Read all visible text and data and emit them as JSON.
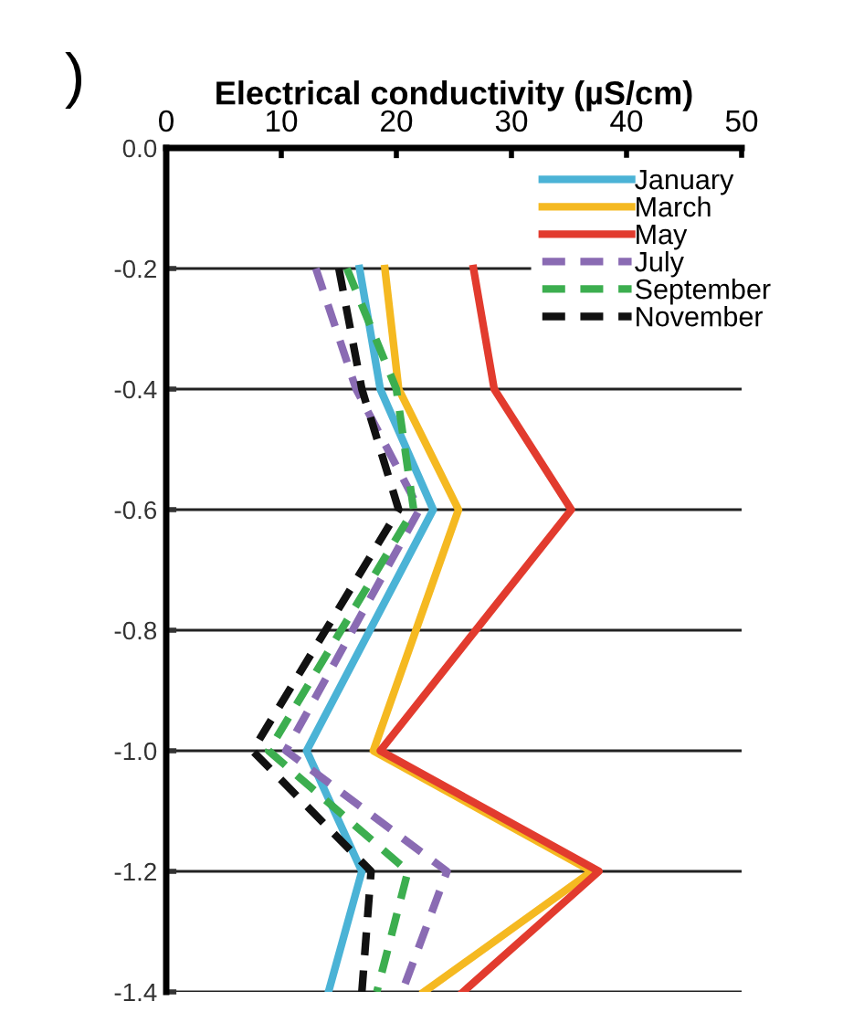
{
  "chart_data": {
    "type": "line",
    "orientation": "horizontal",
    "xlabel": "Electrical conductivity (µS/cm)",
    "x": [
      -0.2,
      -0.4,
      -0.6,
      -1.0,
      -1.2,
      -1.4
    ],
    "series": [
      {
        "name": "January",
        "color": "#4bb3d6",
        "line_style": "solid",
        "values": [
          16.8,
          18.6,
          23.2,
          12.2,
          17,
          14.1
        ]
      },
      {
        "name": "March",
        "color": "#f5b921",
        "line_style": "solid",
        "values": [
          19,
          20.2,
          25.4,
          18,
          37,
          22.4
        ]
      },
      {
        "name": "May",
        "color": "#e23b2e",
        "line_style": "solid",
        "values": [
          26.7,
          28.5,
          35.2,
          18.6,
          37.6,
          25.8
        ]
      },
      {
        "name": "July",
        "color": "#8a6bb3",
        "line_style": "dashed",
        "values": [
          13,
          16.5,
          22,
          10.4,
          24.4,
          20.5
        ]
      },
      {
        "name": "September",
        "color": "#3cae4f",
        "line_style": "dashed",
        "values": [
          15.7,
          20,
          21.5,
          8.9,
          21,
          18.3
        ]
      },
      {
        "name": "November",
        "color": "#111111",
        "line_style": "dashed",
        "values": [
          15,
          17,
          20.2,
          7.5,
          17.8,
          17
        ]
      }
    ],
    "xlim": [
      0,
      50
    ],
    "xticks": [
      0,
      10,
      20,
      30,
      40,
      50
    ],
    "ylim": [
      -1.4,
      0
    ],
    "yticks": [
      {
        "value": 0,
        "label": "0.0"
      },
      {
        "value": -0.2,
        "label": "-0.2"
      },
      {
        "value": -0.4,
        "label": "-0.4"
      },
      {
        "value": -0.6,
        "label": "-0.6"
      },
      {
        "value": -0.8,
        "label": "-0.8"
      },
      {
        "value": -1.0,
        "label": "-1.0"
      },
      {
        "value": -1.2,
        "label": "-1.2"
      },
      {
        "value": -1.4,
        "label": "-1.4"
      }
    ],
    "grid": "y",
    "legend": "top right",
    "marker": "none",
    "annotations": [
      ")"
    ]
  }
}
